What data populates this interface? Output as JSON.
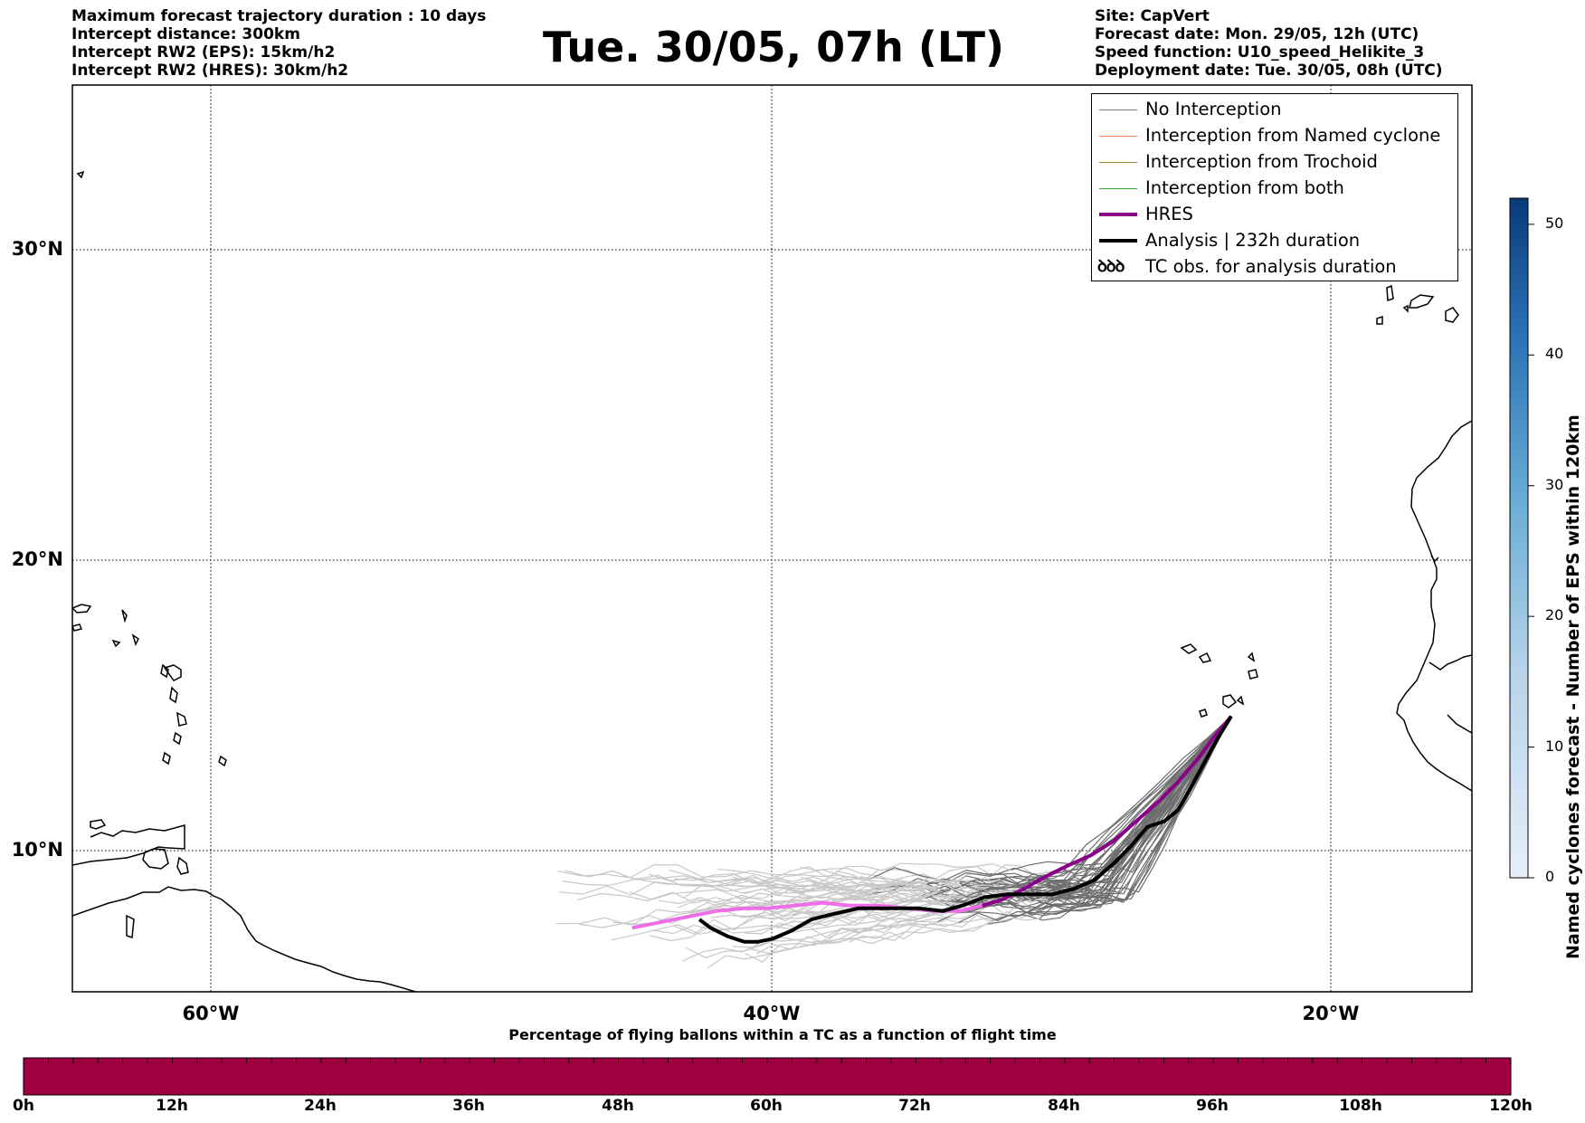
{
  "header": {
    "left_lines": [
      "Maximum forecast trajectory duration : 10 days",
      "Intercept distance: 300km",
      "Intercept RW2 (EPS):  15km/h2",
      "Intercept RW2 (HRES): 30km/h2"
    ],
    "title": "Tue. 30/05, 07h (LT)",
    "right_lines": [
      "Site: CapVert",
      "Forecast date: Mon. 29/05, 12h (UTC)",
      "Speed function: U10_speed_Helikite_3",
      "Deployment date: Tue. 30/05, 08h (UTC)"
    ]
  },
  "map": {
    "lat_labels": [
      "30°N",
      "20°N",
      "10°N"
    ],
    "lon_labels": [
      "60°W",
      "40°W",
      "20°W"
    ],
    "grid": "dotted",
    "extent": {
      "lon_min": -65,
      "lon_max": -15,
      "lat_min": 5.2,
      "lat_max": 35.5
    },
    "release_site": {
      "lon": -23.6,
      "lat": 15.0
    },
    "hres_track": [
      [
        -23.6,
        15.0
      ],
      [
        -24.2,
        14.3
      ],
      [
        -24.8,
        13.5
      ],
      [
        -25.5,
        12.7
      ],
      [
        -26.2,
        12.0
      ],
      [
        -27.0,
        11.3
      ],
      [
        -27.8,
        10.6
      ],
      [
        -28.6,
        10.1
      ],
      [
        -29.5,
        9.7
      ],
      [
        -30.3,
        9.3
      ],
      [
        -31.0,
        8.9
      ],
      [
        -31.8,
        8.5
      ],
      [
        -32.5,
        8.3
      ],
      [
        -33.3,
        8.1
      ],
      [
        -34.2,
        8.1
      ],
      [
        -35.2,
        8.2
      ],
      [
        -36.2,
        8.3
      ],
      [
        -37.2,
        8.3
      ],
      [
        -38.2,
        8.4
      ],
      [
        -39.2,
        8.3
      ],
      [
        -40.2,
        8.2
      ],
      [
        -41.0,
        8.2
      ],
      [
        -42.0,
        8.1
      ],
      [
        -43.0,
        7.9
      ],
      [
        -44.0,
        7.7
      ],
      [
        -45.0,
        7.5
      ]
    ],
    "analysis_track": [
      [
        -23.6,
        15.0
      ],
      [
        -24.1,
        14.2
      ],
      [
        -24.6,
        13.3
      ],
      [
        -25.1,
        12.4
      ],
      [
        -25.5,
        11.7
      ],
      [
        -26.0,
        11.3
      ],
      [
        -26.6,
        11.1
      ],
      [
        -27.2,
        10.4
      ],
      [
        -27.8,
        9.8
      ],
      [
        -28.5,
        9.2
      ],
      [
        -29.2,
        8.9
      ],
      [
        -30.0,
        8.7
      ],
      [
        -30.8,
        8.7
      ],
      [
        -31.6,
        8.7
      ],
      [
        -32.4,
        8.6
      ],
      [
        -33.2,
        8.3
      ],
      [
        -33.9,
        8.1
      ],
      [
        -34.8,
        8.2
      ],
      [
        -35.8,
        8.2
      ],
      [
        -36.9,
        8.2
      ],
      [
        -37.8,
        8.0
      ],
      [
        -38.6,
        7.8
      ],
      [
        -39.3,
        7.4
      ],
      [
        -40.0,
        7.1
      ],
      [
        -40.5,
        7.0
      ],
      [
        -41.0,
        7.0
      ],
      [
        -41.6,
        7.2
      ],
      [
        -42.2,
        7.5
      ],
      [
        -42.6,
        7.8
      ]
    ]
  },
  "legend": {
    "items": [
      {
        "label": "No Interception",
        "color": "#808080",
        "width": 1.5
      },
      {
        "label": "Interception from Named cyclone",
        "color": "#ff7f50",
        "width": 1.5
      },
      {
        "label": "Interception from Trochoid",
        "color": "#a08c30",
        "width": 1.5
      },
      {
        "label": "Interception from both",
        "color": "#3aa83a",
        "width": 1.5
      },
      {
        "label": "HRES",
        "color": "#8b008b",
        "width": 4
      },
      {
        "label": "Analysis | 232h duration",
        "color": "#000000",
        "width": 4
      },
      {
        "label": "TC obs. for analysis duration",
        "color": "#000000",
        "width": 0,
        "icon": "ꝺꝺꝺ"
      }
    ]
  },
  "colorbar_vertical": {
    "label": "Named cyclones forecast - Number of EPS within 120km",
    "ticks": [
      "0",
      "10",
      "20",
      "30",
      "40",
      "50"
    ],
    "max": 52,
    "color_low": "#e6eff9",
    "color_high": "#083a7a"
  },
  "colorbar_horizontal": {
    "title": "Percentage of flying ballons within a TC as a function of flight time",
    "ticks": [
      "0h",
      "12h",
      "24h",
      "36h",
      "48h",
      "60h",
      "72h",
      "84h",
      "96h",
      "108h",
      "120h"
    ],
    "fill_color": "#9e0040"
  }
}
